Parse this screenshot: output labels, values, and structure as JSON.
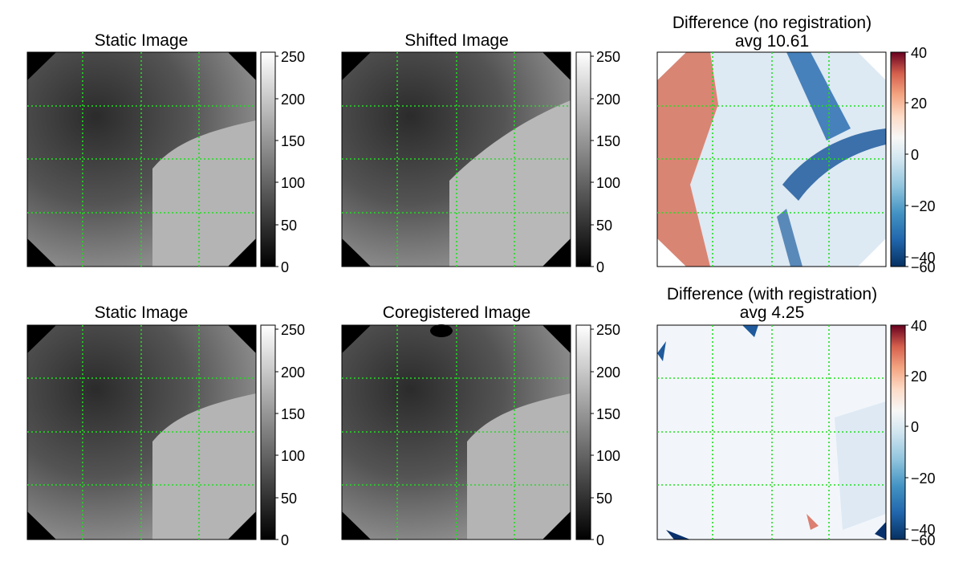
{
  "chart_data": [
    {
      "type": "heatmap",
      "title": "Static Image",
      "colormap": "gray",
      "grid": true,
      "grid_style": "dotted",
      "grid_color": "#22dd22",
      "colorbar": {
        "range": [
          0,
          255
        ],
        "ticks": [
          0,
          50,
          100,
          150,
          200,
          250
        ],
        "tick_labels": [
          "0",
          "50",
          "100",
          "150",
          "200",
          "250"
        ]
      }
    },
    {
      "type": "heatmap",
      "title": "Shifted Image",
      "colormap": "gray",
      "grid": true,
      "grid_style": "dotted",
      "grid_color": "#22dd22",
      "colorbar": {
        "range": [
          0,
          255
        ],
        "ticks": [
          0,
          50,
          100,
          150,
          200,
          250
        ],
        "tick_labels": [
          "0",
          "50",
          "100",
          "150",
          "200",
          "250"
        ]
      }
    },
    {
      "type": "heatmap",
      "title": "Difference (no registration)",
      "subtitle": "avg 10.61",
      "colormap": "RdBu",
      "grid": true,
      "grid_style": "dotted",
      "grid_color": "#22dd22",
      "colorbar": {
        "range": [
          -60,
          40
        ],
        "ticks": [
          -60,
          -40,
          -20,
          0,
          20,
          40
        ],
        "tick_labels": [
          "−60",
          "−40",
          "−20",
          "0",
          "20",
          "40"
        ]
      }
    },
    {
      "type": "heatmap",
      "title": "Static Image",
      "colormap": "gray",
      "grid": true,
      "grid_style": "dotted",
      "grid_color": "#22dd22",
      "colorbar": {
        "range": [
          0,
          255
        ],
        "ticks": [
          0,
          50,
          100,
          150,
          200,
          250
        ],
        "tick_labels": [
          "0",
          "50",
          "100",
          "150",
          "200",
          "250"
        ]
      }
    },
    {
      "type": "heatmap",
      "title": "Coregistered Image",
      "colormap": "gray",
      "grid": true,
      "grid_style": "dotted",
      "grid_color": "#22dd22",
      "colorbar": {
        "range": [
          0,
          255
        ],
        "ticks": [
          0,
          50,
          100,
          150,
          200,
          250
        ],
        "tick_labels": [
          "0",
          "50",
          "100",
          "150",
          "200",
          "250"
        ]
      }
    },
    {
      "type": "heatmap",
      "title": "Difference (with registration)",
      "subtitle": "avg 4.25",
      "colormap": "RdBu",
      "grid": true,
      "grid_style": "dotted",
      "grid_color": "#22dd22",
      "colorbar": {
        "range": [
          -60,
          40
        ],
        "ticks": [
          -60,
          -40,
          -20,
          0,
          20,
          40
        ],
        "tick_labels": [
          "−60",
          "−40",
          "−20",
          "0",
          "20",
          "40"
        ]
      }
    }
  ]
}
